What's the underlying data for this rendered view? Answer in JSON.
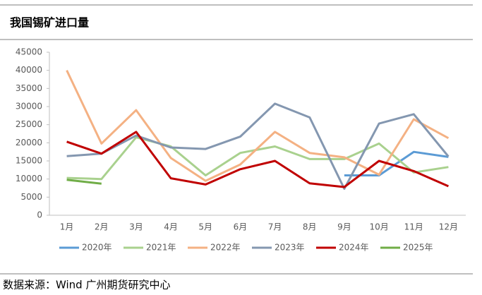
{
  "chart_data": {
    "type": "line",
    "title": "我国锡矿进口量",
    "source": "数据来源：Wind  广州期货研究中心",
    "categories": [
      "1月",
      "2月",
      "3月",
      "4月",
      "5月",
      "6月",
      "7月",
      "8月",
      "9月",
      "10月",
      "11月",
      "12月"
    ],
    "series": [
      {
        "name": "2020年",
        "color": "#5b9bd5",
        "values": [
          null,
          null,
          null,
          null,
          null,
          null,
          null,
          null,
          11000,
          11000,
          17500,
          16100
        ]
      },
      {
        "name": "2021年",
        "color": "#a9d18e",
        "values": [
          10300,
          10000,
          21500,
          19000,
          11000,
          17200,
          19000,
          15500,
          15500,
          19800,
          11800,
          13300
        ]
      },
      {
        "name": "2022年",
        "color": "#f4b183",
        "values": [
          40000,
          19800,
          29000,
          15800,
          9500,
          14000,
          23000,
          17200,
          16000,
          11200,
          26500,
          21300
        ]
      },
      {
        "name": "2023年",
        "color": "#8497b0",
        "values": [
          16300,
          17000,
          22000,
          18700,
          18300,
          21700,
          30800,
          27000,
          7300,
          25300,
          27900,
          16200
        ]
      },
      {
        "name": "2024年",
        "color": "#c00000",
        "values": [
          20300,
          17000,
          23000,
          10200,
          8500,
          12700,
          15000,
          8800,
          7800,
          15000,
          12200,
          8000
        ]
      },
      {
        "name": "2025年",
        "color": "#70ad47",
        "values": [
          9800,
          8700,
          null,
          null,
          null,
          null,
          null,
          null,
          null,
          null,
          null,
          null
        ]
      }
    ],
    "ylim": [
      0,
      45000
    ],
    "yticks": [
      0,
      5000,
      10000,
      15000,
      20000,
      25000,
      30000,
      35000,
      40000,
      45000
    ],
    "grid": false
  }
}
